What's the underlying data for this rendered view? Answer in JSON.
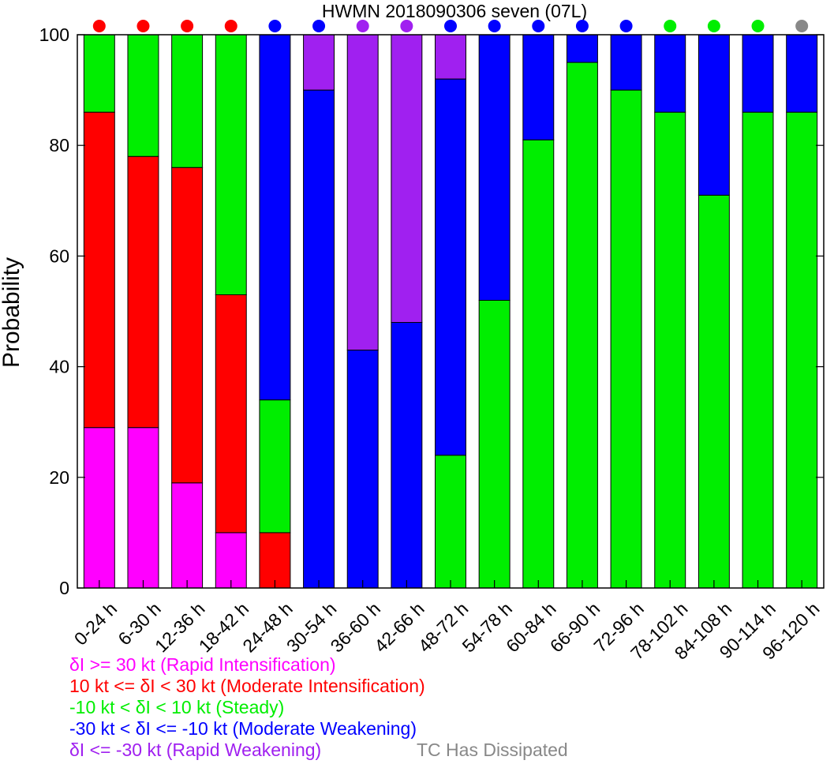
{
  "chart_data": {
    "type": "bar",
    "stacked": true,
    "title": "HWMN 2018090306 seven (07L)",
    "xlabel": "",
    "ylabel": "Probability",
    "ylim": [
      0,
      100
    ],
    "yticks": [
      "0",
      "20",
      "40",
      "60",
      "80",
      "100"
    ],
    "grid": false,
    "categories": [
      "0-24 h",
      "6-30 h",
      "12-36 h",
      "18-42 h",
      "24-48 h",
      "30-54 h",
      "36-60 h",
      "42-66 h",
      "48-72 h",
      "54-78 h",
      "60-84 h",
      "66-90 h",
      "72-96 h",
      "78-102 h",
      "84-108 h",
      "90-114 h",
      "96-120 h"
    ],
    "series": [
      {
        "key": "ri",
        "color": "#ff00ff",
        "values": [
          29,
          29,
          19,
          10,
          0,
          0,
          0,
          0,
          0,
          0,
          0,
          0,
          0,
          0,
          0,
          0,
          0
        ]
      },
      {
        "key": "mi",
        "color": "#ff0000",
        "values": [
          57,
          49,
          57,
          43,
          10,
          0,
          0,
          0,
          0,
          0,
          0,
          0,
          0,
          0,
          0,
          0,
          0
        ]
      },
      {
        "key": "st",
        "color": "#00ee00",
        "values": [
          14,
          22,
          24,
          47,
          24,
          0,
          0,
          0,
          24,
          52,
          81,
          95,
          90,
          86,
          71,
          86,
          86
        ]
      },
      {
        "key": "mw",
        "color": "#0000ff",
        "values": [
          0,
          0,
          0,
          0,
          66,
          90,
          43,
          48,
          68,
          48,
          19,
          5,
          10,
          14,
          29,
          14,
          14
        ]
      },
      {
        "key": "rw",
        "color": "#a020f0",
        "values": [
          0,
          0,
          0,
          0,
          0,
          10,
          57,
          52,
          8,
          0,
          0,
          0,
          0,
          0,
          0,
          0,
          0
        ]
      }
    ],
    "top_markers": [
      "#ff0000",
      "#ff0000",
      "#ff0000",
      "#ff0000",
      "#0000ff",
      "#0000ff",
      "#a020f0",
      "#a020f0",
      "#0000ff",
      "#0000ff",
      "#0000ff",
      "#0000ff",
      "#0000ff",
      "#00ee00",
      "#00ee00",
      "#00ee00",
      "#888888"
    ],
    "legend": [
      {
        "label": "δI >= 30 kt (Rapid Intensification)",
        "color": "#ff00ff"
      },
      {
        "label": "10 kt <= δI < 30 kt (Moderate Intensification)",
        "color": "#ff0000"
      },
      {
        "label": "-10 kt < δI < 10 kt (Steady)",
        "color": "#00ee00"
      },
      {
        "label": "-30 kt < δI <= -10 kt (Moderate Weakening)",
        "color": "#0000ff"
      },
      {
        "label": "δI <= -30 kt (Rapid Weakening)",
        "color": "#a020f0"
      }
    ],
    "legend_extra": {
      "label": "TC Has Dissipated",
      "color": "#888888"
    },
    "legend_position": "bottom-left"
  }
}
